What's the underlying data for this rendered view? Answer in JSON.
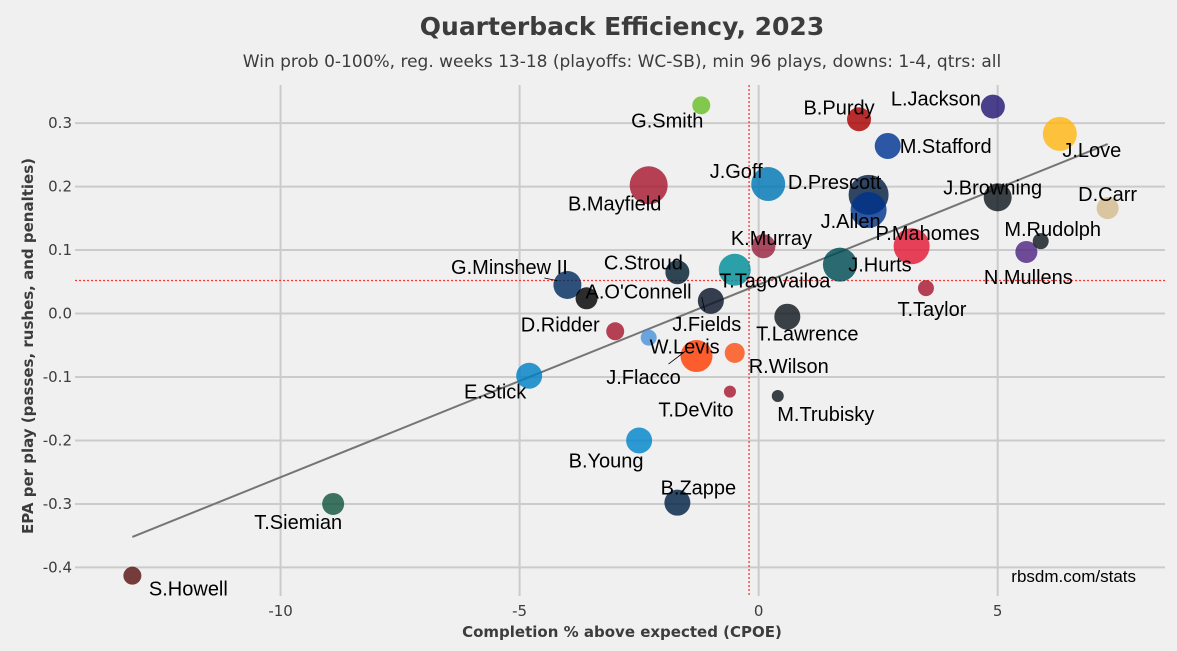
{
  "chart_data": {
    "type": "scatter",
    "title": "Quarterback Efficiency, 2023",
    "subtitle": "Win prob 0-100%, reg. weeks 13-18 (playoffs: WC-SB), min 96 plays, downs: 1-4, qtrs: all",
    "xlabel": "Completion % above expected (CPOE)",
    "ylabel": "EPA per play (passes, rushes, and penalties)",
    "xlim": [
      -14.3,
      8.5
    ],
    "ylim": [
      -0.445,
      0.36
    ],
    "x_ticks": [
      -10,
      -5,
      0,
      5
    ],
    "x_tick_labels": [
      "-10",
      "-5",
      "0",
      "5"
    ],
    "y_ticks": [
      -0.4,
      -0.3,
      -0.2,
      -0.1,
      0.0,
      0.1,
      0.2,
      0.3
    ],
    "y_tick_labels": [
      "-0.4",
      "-0.3",
      "-0.2",
      "-0.1",
      "0.0",
      "0.1",
      "0.2",
      "0.3"
    ],
    "grid": true,
    "reference_lines": {
      "x": -0.2,
      "y": 0.052,
      "color": "#ff3333"
    },
    "trend_line": {
      "x": [
        -13.1,
        7.3
      ],
      "y": [
        -0.352,
        0.267
      ],
      "color": "#757575"
    },
    "source_note": "rbsdm.com/stats",
    "points": [
      {
        "label": "L.Jackson",
        "x": 4.9,
        "y": 0.326,
        "color": "#241773",
        "size": 12
      },
      {
        "label": "B.Purdy",
        "x": 2.1,
        "y": 0.306,
        "color": "#AA0000",
        "size": 12
      },
      {
        "label": "G.Smith",
        "x": -1.2,
        "y": 0.328,
        "color": "#69BE28",
        "size": 9
      },
      {
        "label": "J.Love",
        "x": 6.3,
        "y": 0.283,
        "color": "#FFB612",
        "size": 17
      },
      {
        "label": "M.Stafford",
        "x": 2.7,
        "y": 0.264,
        "color": "#003594",
        "size": 13
      },
      {
        "label": "D.Carr",
        "x": 7.3,
        "y": 0.166,
        "color": "#D3BC8D",
        "size": 11
      },
      {
        "label": "J.Goff",
        "x": 0.2,
        "y": 0.204,
        "color": "#0076B6",
        "size": 17
      },
      {
        "label": "D.Prescott",
        "x": 2.3,
        "y": 0.187,
        "color": "#041E42",
        "size": 20
      },
      {
        "label": "B.Mayfield",
        "x": -2.3,
        "y": 0.202,
        "color": "#A71930",
        "size": 19
      },
      {
        "label": "J.Browning",
        "x": 5.0,
        "y": 0.183,
        "color": "#101820",
        "size": 14
      },
      {
        "label": "J.Allen",
        "x": 2.3,
        "y": 0.163,
        "color": "#00338D",
        "size": 18
      },
      {
        "label": "P.Mahomes",
        "x": 3.2,
        "y": 0.106,
        "color": "#E31837",
        "size": 18
      },
      {
        "label": "M.Rudolph",
        "x": 5.9,
        "y": 0.114,
        "color": "#101820",
        "size": 8
      },
      {
        "label": "N.Mullens",
        "x": 5.6,
        "y": 0.097,
        "color": "#4F2683",
        "size": 11
      },
      {
        "label": "K.Murray",
        "x": 0.1,
        "y": 0.106,
        "color": "#97233F",
        "size": 12
      },
      {
        "label": "J.Hurts",
        "x": 1.7,
        "y": 0.077,
        "color": "#004C54",
        "size": 17
      },
      {
        "label": "C.Stroud",
        "x": -1.7,
        "y": 0.065,
        "color": "#03202F",
        "size": 12
      },
      {
        "label": "T.Tagovailoa",
        "x": -0.5,
        "y": 0.069,
        "color": "#008E97",
        "size": 16
      },
      {
        "label": "G.Minshew II",
        "x": -4.0,
        "y": 0.045,
        "color": "#002C5F",
        "size": 14
      },
      {
        "label": "A.O'Connell",
        "x": -3.6,
        "y": 0.024,
        "color": "#000000",
        "size": 11
      },
      {
        "label": "T.Taylor",
        "x": 3.5,
        "y": 0.04,
        "color": "#A71930",
        "size": 8
      },
      {
        "label": "J.Fields",
        "x": -1.0,
        "y": 0.02,
        "color": "#0B162A",
        "size": 13
      },
      {
        "label": "T.Lawrence",
        "x": 0.6,
        "y": -0.005,
        "color": "#101820",
        "size": 13
      },
      {
        "label": "D.Ridder",
        "x": -3.0,
        "y": -0.028,
        "color": "#A71930",
        "size": 9
      },
      {
        "label": "W.Levis",
        "x": -2.3,
        "y": -0.038,
        "color": "#4B92DB",
        "size": 8
      },
      {
        "label": "J.Flacco",
        "x": -1.3,
        "y": -0.067,
        "color": "#FF3C00",
        "size": 16
      },
      {
        "label": "R.Wilson",
        "x": -0.5,
        "y": -0.062,
        "color": "#FB4F14",
        "size": 10
      },
      {
        "label": "E.Stick",
        "x": -4.8,
        "y": -0.098,
        "color": "#0080C6",
        "size": 13
      },
      {
        "label": "T.DeVito",
        "x": -0.6,
        "y": -0.123,
        "color": "#A71930",
        "size": 6
      },
      {
        "label": "M.Trubisky",
        "x": 0.4,
        "y": -0.13,
        "color": "#101820",
        "size": 6
      },
      {
        "label": "B.Young",
        "x": -2.5,
        "y": -0.2,
        "color": "#0085CA",
        "size": 13
      },
      {
        "label": "B.Zappe",
        "x": -1.7,
        "y": -0.298,
        "color": "#002244",
        "size": 13
      },
      {
        "label": "T.Siemian",
        "x": -8.9,
        "y": -0.3,
        "color": "#125740",
        "size": 11
      },
      {
        "label": "S.Howell",
        "x": -13.1,
        "y": -0.413,
        "color": "#5A1414",
        "size": 9
      }
    ]
  }
}
